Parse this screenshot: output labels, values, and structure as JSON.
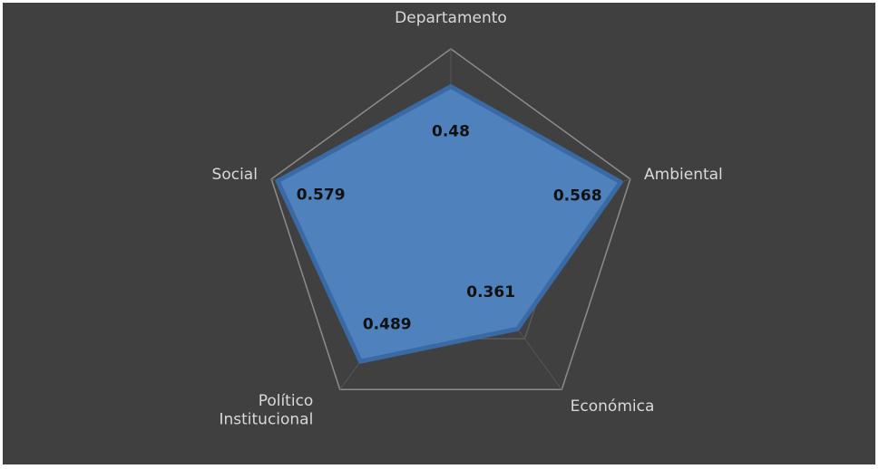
{
  "chart_data": {
    "type": "radar",
    "categories": [
      "Departamento",
      "Ambiental",
      "Económica",
      "Político Institucional",
      "Social"
    ],
    "values": [
      0.48,
      0.568,
      0.361,
      0.489,
      0.579
    ],
    "color": "#4f81bd",
    "ylim": [
      0,
      0.6
    ],
    "yticks": [
      0,
      0.2,
      0.4,
      0.6
    ],
    "grid": true
  }
}
